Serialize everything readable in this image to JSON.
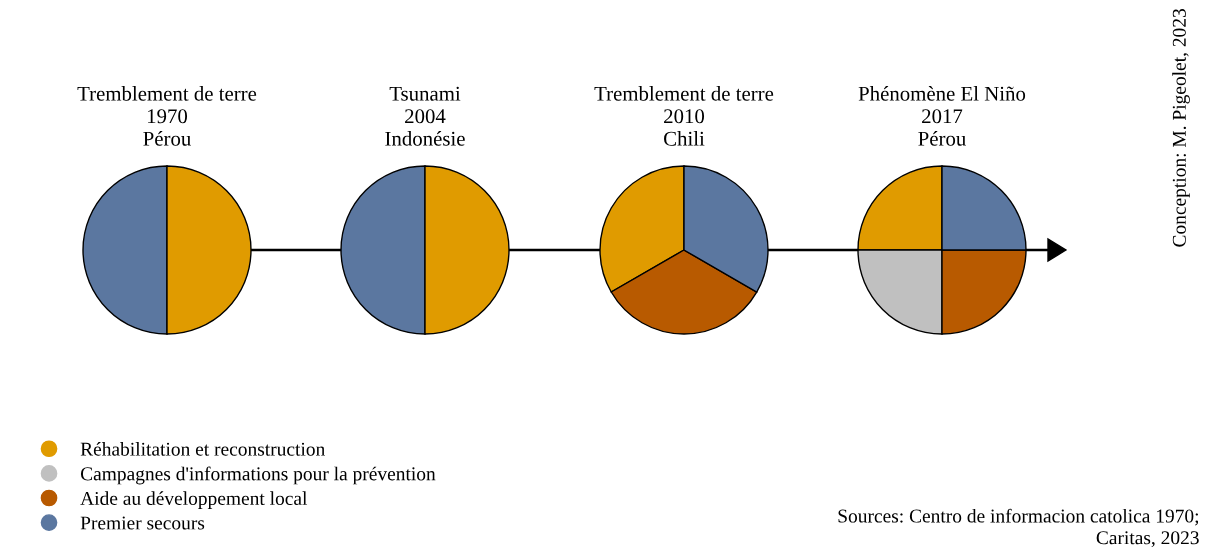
{
  "chart_data": [
    {
      "type": "pie",
      "title": "Tremblement de terre\n1970\nPérou",
      "categories": [
        null,
        null
      ],
      "values": [
        50,
        50
      ],
      "colors": [
        "#5b77a0",
        "#e09b00"
      ]
    },
    {
      "type": "pie",
      "title": "Tsunami\n2004\nIndonésie",
      "categories": [
        null,
        null
      ],
      "values": [
        50,
        50
      ],
      "colors": [
        "#5b77a0",
        "#e09b00"
      ]
    },
    {
      "type": "pie",
      "title": "Tremblement de terre\n2010\nChili",
      "categories": [
        null,
        null,
        null
      ],
      "values": [
        33.33,
        33.33,
        33.34
      ],
      "colors": [
        "#e09b00",
        "#b85a00",
        "#5b77a0"
      ]
    },
    {
      "type": "pie",
      "title": "Phénomène El Niño\n2017\nPérou",
      "categories": [
        "Réhabilitation et reconstruction",
        "Campagnes d'informations pour la prévention",
        "Aide au développement local",
        "Premier secours"
      ],
      "values": [
        25,
        25,
        25,
        25
      ],
      "colors": [
        "#e09b00",
        "#c0c0c0",
        "#b85a00",
        "#5b77a0"
      ],
      "legend": "bottom left",
      "annotations": [
        "Conception: M. Pigeolet, 2023",
        "Sources: Centro de informacion catolica 1970;\nCaritas, 2023"
      ]
    }
  ]
}
